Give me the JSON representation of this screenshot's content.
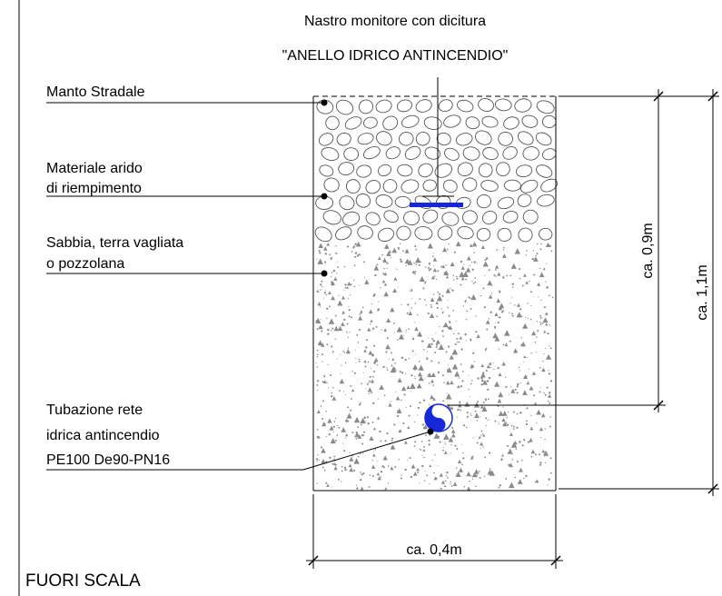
{
  "title": {
    "line1": "Nastro monitore con dicitura",
    "line2": "\"ANELLO IDRICO ANTINCENDIO\""
  },
  "layers": [
    {
      "id": "manto",
      "lines": [
        "Manto Stradale"
      ]
    },
    {
      "id": "arido",
      "lines": [
        "Materiale arido",
        "di riempimento"
      ]
    },
    {
      "id": "sabbia",
      "lines": [
        "Sabbia, terra vagliata",
        "o pozzolana"
      ]
    },
    {
      "id": "tubazione",
      "lines": [
        "Tubazione rete",
        "idrica antincendio",
        "PE100 De90-PN16"
      ]
    }
  ],
  "dimensions": {
    "depth_tape_pipe": "ca. 0,9m",
    "depth_total": "ca. 1,1m",
    "width": "ca. 0,4m"
  },
  "scale_note": "FUORI SCALA",
  "colors": {
    "line": "#000000",
    "tape": "#1428d8",
    "pipe": "#1428d8",
    "speckle": "#8a8a8a",
    "stone": "#555555"
  }
}
